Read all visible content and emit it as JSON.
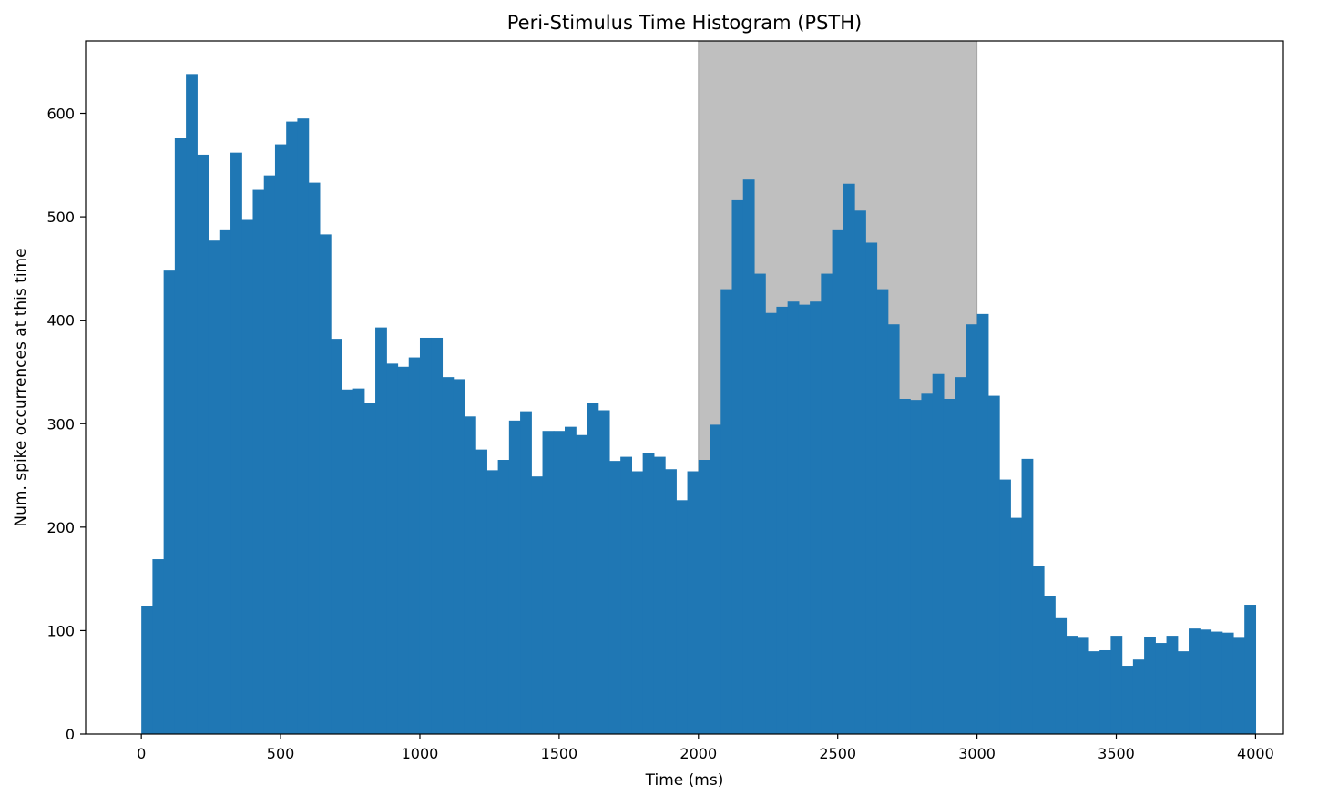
{
  "chart_data": {
    "type": "bar",
    "title": "Peri-Stimulus Time Histogram (PSTH)",
    "xlabel": "Time (ms)",
    "ylabel": "Num. spike occurrences at this time",
    "xlim": [
      -200,
      4100
    ],
    "ylim": [
      0,
      670
    ],
    "xticks": [
      0,
      500,
      1000,
      1500,
      2000,
      2500,
      3000,
      3500,
      4000
    ],
    "yticks": [
      0,
      100,
      200,
      300,
      400,
      500,
      600
    ],
    "bin_start": 0,
    "bin_width": 40,
    "bar_color": "#1f77b4",
    "stimulus_window": {
      "start": 2000,
      "end": 3000,
      "color": "#bfbfbf"
    },
    "grid": false,
    "legend": "none",
    "values": [
      124,
      169,
      448,
      576,
      638,
      560,
      477,
      487,
      562,
      497,
      526,
      540,
      570,
      592,
      595,
      533,
      483,
      382,
      333,
      334,
      320,
      393,
      358,
      355,
      364,
      383,
      383,
      345,
      343,
      307,
      275,
      255,
      265,
      303,
      312,
      249,
      293,
      293,
      297,
      289,
      320,
      313,
      264,
      268,
      254,
      272,
      268,
      256,
      226,
      254,
      265,
      299,
      430,
      516,
      536,
      445,
      407,
      413,
      418,
      415,
      418,
      445,
      487,
      532,
      506,
      475,
      430,
      396,
      324,
      323,
      329,
      348,
      324,
      345,
      396,
      406,
      327,
      246,
      209,
      266,
      162,
      133,
      112,
      95,
      93,
      80,
      81,
      95,
      66,
      72,
      94,
      88,
      95,
      80,
      102,
      101,
      99,
      98,
      93,
      125
    ]
  }
}
